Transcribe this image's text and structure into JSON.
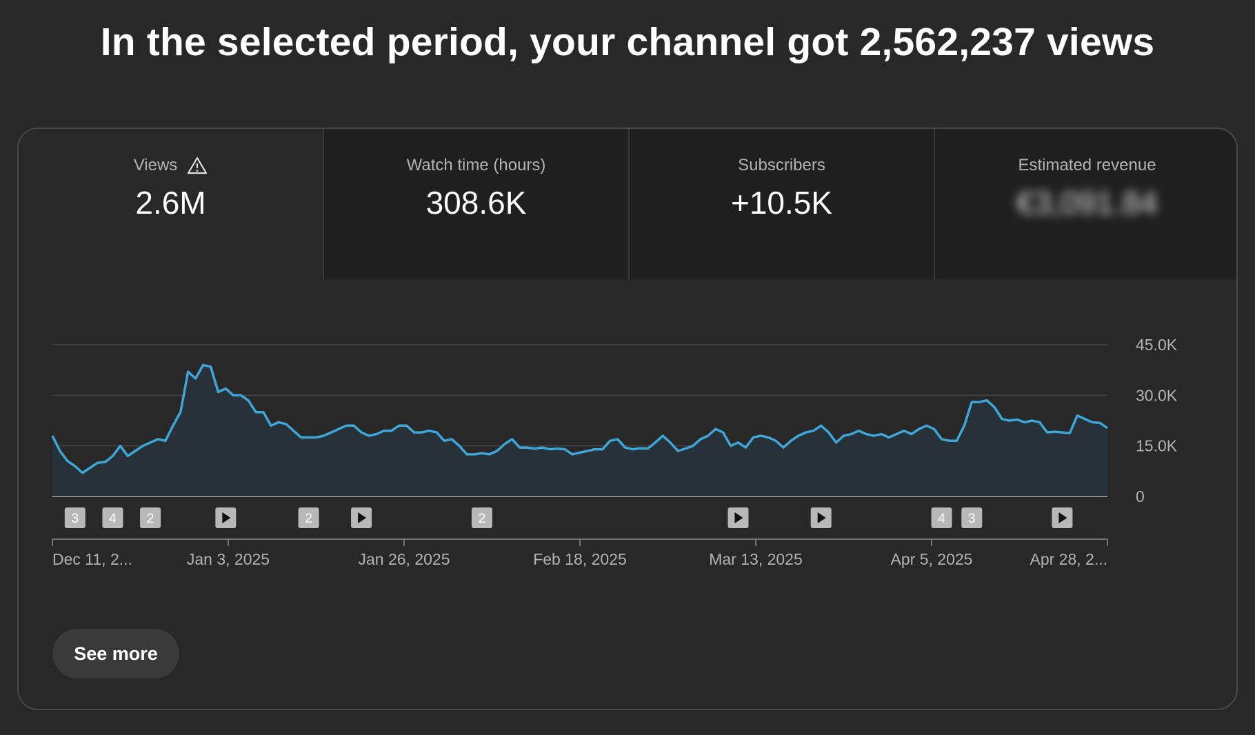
{
  "headline": "In the selected period, your channel got 2,562,237 views",
  "tabs": [
    {
      "label": "Views",
      "value": "2.6M",
      "icon": "warning-icon",
      "active": true
    },
    {
      "label": "Watch time (hours)",
      "value": "308.6K"
    },
    {
      "label": "Subscribers",
      "value": "+10.5K"
    },
    {
      "label": "Estimated revenue",
      "value": "€3,091.84",
      "blurred": true
    }
  ],
  "see_more_label": "See more",
  "colors": {
    "line": "#3ea6d8",
    "fill": "#263238",
    "background": "#282828"
  },
  "chart_data": {
    "type": "area",
    "series": [
      {
        "values": [
          18,
          13.5,
          10.5,
          9,
          7,
          8.5,
          10,
          10.2,
          12,
          15,
          12,
          13.5,
          15,
          16,
          17,
          16.5,
          21,
          25,
          37,
          35,
          39,
          38.5,
          31,
          32,
          30,
          30,
          28.5,
          25,
          25,
          21,
          22,
          21.5,
          19.5,
          17.5,
          17.5,
          17.5,
          18,
          19,
          20,
          21,
          21,
          19,
          18,
          18.5,
          19.5,
          19.5,
          21,
          21,
          19,
          19,
          19.5,
          19,
          16.5,
          17,
          15,
          12.5,
          12.5,
          12.8,
          12.5,
          13.5,
          15.5,
          17,
          14.5,
          14.5,
          14.2,
          14.5,
          14,
          14.2,
          14,
          12.5,
          13,
          13.5,
          14,
          14,
          16.5,
          17,
          14.5,
          14,
          14.3,
          14.2,
          16,
          18,
          16,
          13.5,
          14.2,
          15,
          17,
          18,
          20,
          19,
          15,
          16,
          14.5,
          17.5,
          18,
          17.5,
          16.5,
          14.5,
          16.5,
          18,
          19,
          19.5,
          21,
          19,
          16,
          18,
          18.5,
          19.5,
          18.5,
          18,
          18.5,
          17.5,
          18.5,
          19.5,
          18.5,
          20,
          21,
          20,
          17,
          16.5,
          16.5,
          21,
          28,
          28,
          28.5,
          26.5,
          23,
          22.5,
          22.8,
          22,
          22.5,
          22,
          19,
          19.2,
          19,
          18.8,
          24,
          23,
          22,
          21.8,
          20.3
        ]
      }
    ],
    "x_tick_labels": [
      "Dec 11, 2...",
      "Jan 3, 2025",
      "Jan 26, 2025",
      "Feb 18, 2025",
      "Mar 13, 2025",
      "Apr 5, 2025",
      "Apr 28, 2..."
    ],
    "y_tick_labels": [
      "45.0K",
      "30.0K",
      "15.0K",
      "0"
    ],
    "y_ticks": [
      45000,
      30000,
      15000,
      0
    ],
    "ylim": [
      0,
      45
    ],
    "markers": [
      {
        "type": "count",
        "label": "3",
        "index": 3
      },
      {
        "type": "count",
        "label": "4",
        "index": 8
      },
      {
        "type": "count",
        "label": "2",
        "index": 13
      },
      {
        "type": "play",
        "label": "",
        "index": 23
      },
      {
        "type": "count",
        "label": "2",
        "index": 34
      },
      {
        "type": "play",
        "label": "",
        "index": 41
      },
      {
        "type": "count",
        "label": "2",
        "index": 57
      },
      {
        "type": "play",
        "label": "",
        "index": 91
      },
      {
        "type": "play",
        "label": "",
        "index": 102
      },
      {
        "type": "count",
        "label": "4",
        "index": 118
      },
      {
        "type": "count",
        "label": "3",
        "index": 122
      },
      {
        "type": "play",
        "label": "",
        "index": 134
      }
    ]
  }
}
